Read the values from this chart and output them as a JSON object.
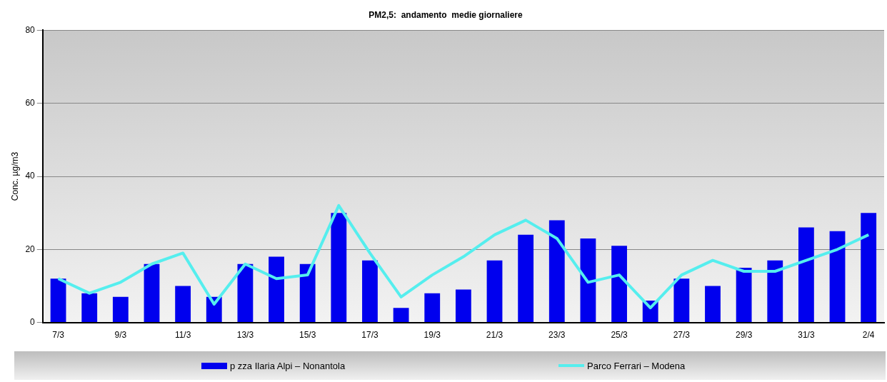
{
  "chart_data": {
    "type": "bar",
    "title": "PM2,5:  andamento  medie giornaliere",
    "ylabel": "Conc. µg/m3",
    "categories": [
      "7/3",
      null,
      "9/3",
      null,
      "11/3",
      null,
      "13/3",
      null,
      "15/3",
      null,
      "17/3",
      null,
      "19/3",
      null,
      "21/3",
      null,
      "23/3",
      null,
      "25/3",
      null,
      "27/3",
      null,
      "29/3",
      null,
      "31/3",
      null,
      "2/4"
    ],
    "series": [
      {
        "name": "p zza Ilaria Alpi – Nonantola",
        "color": "#0000ee",
        "values": [
          12,
          8,
          7,
          16,
          10,
          7,
          16,
          18,
          16,
          30,
          17,
          4,
          8,
          9,
          17,
          24,
          28,
          23,
          21,
          6,
          12,
          10,
          15,
          17,
          26,
          25,
          30
        ]
      },
      {
        "name": "Parco Ferrari – Modena",
        "type": "line",
        "color": "#55eeee",
        "values": [
          12,
          8,
          11,
          16,
          19,
          5,
          16,
          12,
          13,
          32,
          19,
          7,
          13,
          18,
          24,
          28,
          23,
          11,
          13,
          4,
          13,
          17,
          14,
          14,
          17,
          20,
          24
        ]
      }
    ],
    "ylim": [
      0,
      80
    ],
    "yticks": [
      0,
      20,
      40,
      60,
      80
    ],
    "grid": "y",
    "legend": "bottom",
    "marker": "none"
  }
}
